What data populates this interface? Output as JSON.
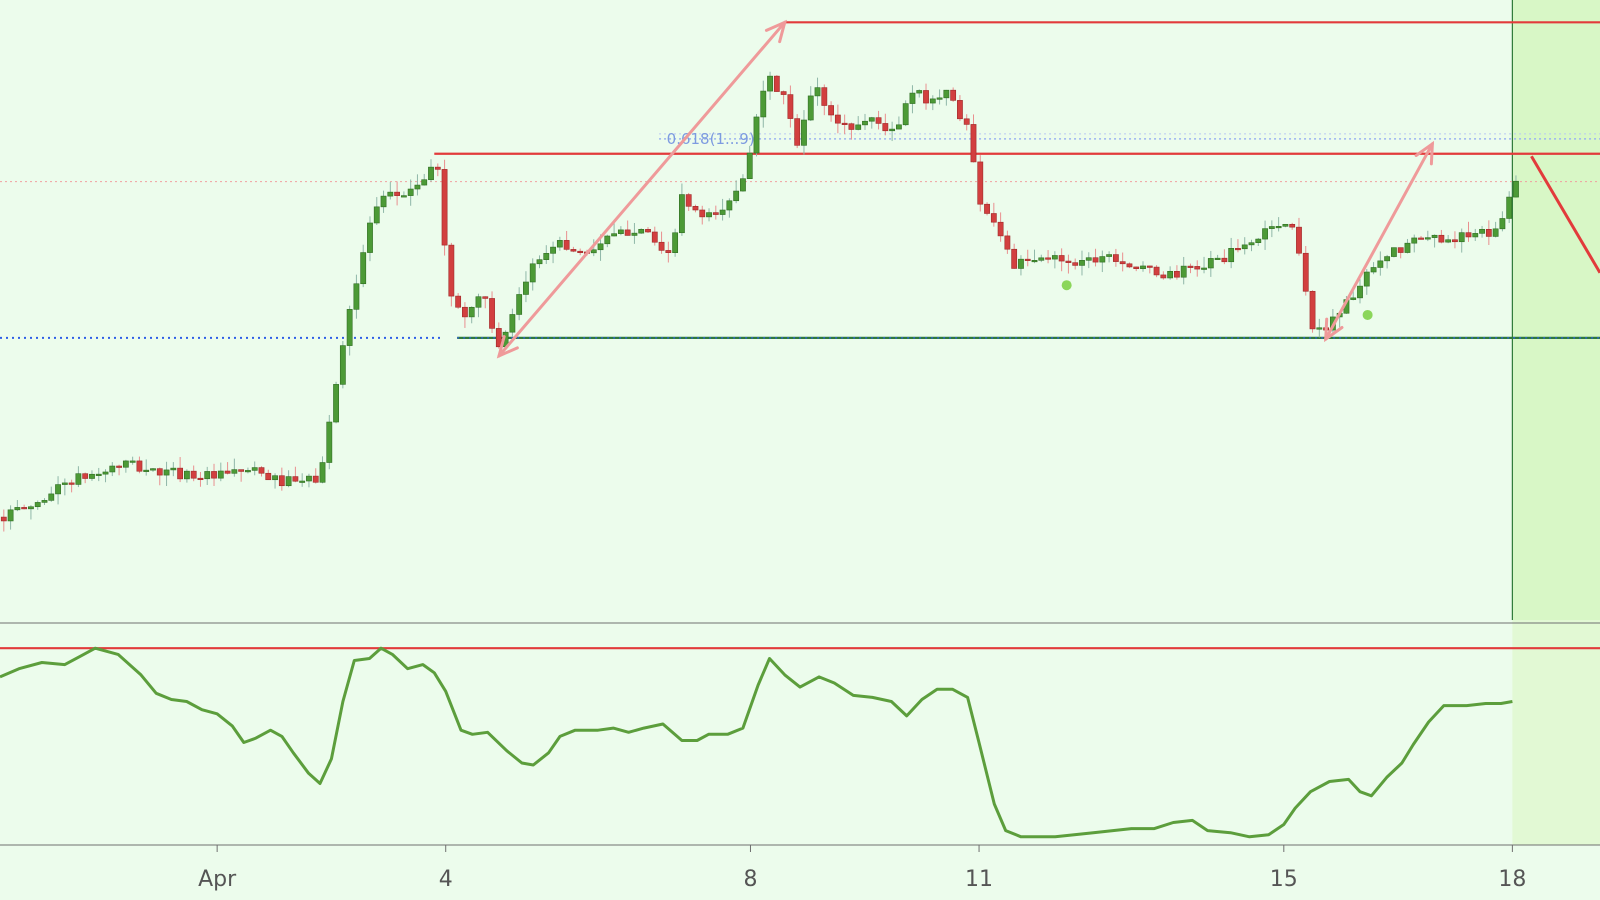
{
  "chart_data": {
    "type": "candlestick",
    "title": "",
    "xlabel": "",
    "ylabel": "",
    "x_tick_labels": [
      "Apr",
      "4",
      "8",
      "11",
      "15",
      "18"
    ],
    "x_tick_days": [
      1,
      4,
      8,
      11,
      15,
      18
    ],
    "x_range_days": [
      -1.85,
      19.15
    ],
    "price_range": [
      0,
      100
    ],
    "fib_label": "0.618(1...9)",
    "fib_level": 77.6,
    "resistance_top": 96.4,
    "resistance_mid": 75.2,
    "support_level": 45.5,
    "current_price": 70.7,
    "grid": false,
    "forecast_zone_start_day": 18,
    "indicator": {
      "range": [
        0,
        100
      ],
      "overbought_level": 96,
      "closes_series": [
        [
          -1.85,
          82
        ],
        [
          -1.6,
          86
        ],
        [
          -1.3,
          89
        ],
        [
          -1.0,
          88
        ],
        [
          -0.8,
          92
        ],
        [
          -0.6,
          96
        ],
        [
          -0.3,
          93
        ],
        [
          0.0,
          83
        ],
        [
          0.2,
          74
        ],
        [
          0.4,
          71
        ],
        [
          0.6,
          70
        ],
        [
          0.8,
          66
        ],
        [
          1.0,
          64
        ],
        [
          1.2,
          58
        ],
        [
          1.35,
          50
        ],
        [
          1.5,
          52
        ],
        [
          1.7,
          56
        ],
        [
          1.85,
          53
        ],
        [
          2.0,
          45
        ],
        [
          2.2,
          35
        ],
        [
          2.35,
          30
        ],
        [
          2.5,
          42
        ],
        [
          2.65,
          70
        ],
        [
          2.8,
          90
        ],
        [
          3.0,
          91
        ],
        [
          3.15,
          96
        ],
        [
          3.3,
          93
        ],
        [
          3.5,
          86
        ],
        [
          3.7,
          88
        ],
        [
          3.85,
          84
        ],
        [
          4.0,
          75
        ],
        [
          4.2,
          56
        ],
        [
          4.35,
          54
        ],
        [
          4.55,
          55
        ],
        [
          4.8,
          46
        ],
        [
          5.0,
          40
        ],
        [
          5.15,
          39
        ],
        [
          5.35,
          45
        ],
        [
          5.5,
          53
        ],
        [
          5.7,
          56
        ],
        [
          6.0,
          56
        ],
        [
          6.2,
          57
        ],
        [
          6.4,
          55
        ],
        [
          6.6,
          57
        ],
        [
          6.85,
          59
        ],
        [
          7.1,
          51
        ],
        [
          7.3,
          51
        ],
        [
          7.45,
          54
        ],
        [
          7.7,
          54
        ],
        [
          7.9,
          57
        ],
        [
          8.1,
          78
        ],
        [
          8.25,
          91
        ],
        [
          8.45,
          83
        ],
        [
          8.65,
          77
        ],
        [
          8.9,
          82
        ],
        [
          9.1,
          79
        ],
        [
          9.35,
          73
        ],
        [
          9.6,
          72
        ],
        [
          9.85,
          70
        ],
        [
          10.05,
          63
        ],
        [
          10.25,
          71
        ],
        [
          10.45,
          76
        ],
        [
          10.65,
          76
        ],
        [
          10.85,
          72
        ],
        [
          11.0,
          50
        ],
        [
          11.2,
          20
        ],
        [
          11.35,
          7
        ],
        [
          11.55,
          4
        ],
        [
          12.0,
          4
        ],
        [
          12.5,
          6
        ],
        [
          13.0,
          8
        ],
        [
          13.3,
          8
        ],
        [
          13.55,
          11
        ],
        [
          13.8,
          12
        ],
        [
          14.0,
          7
        ],
        [
          14.3,
          6
        ],
        [
          14.55,
          4
        ],
        [
          14.8,
          5
        ],
        [
          15.0,
          10
        ],
        [
          15.15,
          18
        ],
        [
          15.35,
          26
        ],
        [
          15.6,
          31
        ],
        [
          15.85,
          32
        ],
        [
          16.0,
          26
        ],
        [
          16.15,
          24
        ],
        [
          16.35,
          33
        ],
        [
          16.55,
          40
        ],
        [
          16.7,
          49
        ],
        [
          16.9,
          60
        ],
        [
          17.1,
          68
        ],
        [
          17.4,
          68
        ],
        [
          17.65,
          69
        ],
        [
          17.85,
          69
        ],
        [
          18.0,
          70
        ]
      ]
    },
    "x_keypoints": [
      -1.85,
      -1.4,
      -1.0,
      -0.6,
      -0.2,
      0.2,
      0.6,
      1.0,
      1.4,
      1.8,
      2.1,
      2.35,
      2.55,
      2.7,
      2.85,
      3.0,
      3.2,
      3.45,
      3.65,
      3.9,
      4.05,
      4.25,
      4.5,
      4.7,
      4.9,
      5.1,
      5.4,
      5.8,
      6.2,
      6.6,
      6.9,
      7.1,
      7.4,
      7.7,
      7.95,
      8.05,
      8.25,
      8.45,
      8.6,
      8.85,
      9.05,
      9.3,
      9.6,
      9.9,
      10.1,
      10.35,
      10.6,
      10.85,
      11.0,
      11.25,
      11.45,
      11.7,
      12.0,
      12.3,
      12.7,
      13.1,
      13.5,
      13.9,
      14.3,
      14.6,
      14.85,
      15.15,
      15.4,
      15.6,
      15.85,
      16.15,
      16.45,
      16.75,
      17.1,
      17.45,
      17.8,
      18.0,
      18.1
    ],
    "price_keypoints": [
      16.6,
      18.5,
      22.2,
      23.5,
      25.2,
      23.8,
      23.6,
      23.0,
      24.2,
      22.4,
      22.2,
      23.0,
      37.0,
      49.0,
      55.0,
      64.0,
      68.0,
      68.8,
      70.5,
      73.2,
      52.0,
      49.2,
      53.0,
      43.2,
      49.4,
      56.4,
      61.0,
      59.2,
      61.8,
      63.8,
      57.4,
      67.8,
      64.4,
      66.7,
      73.0,
      81.0,
      87.0,
      84.4,
      76.0,
      86.6,
      81.2,
      79.4,
      81.0,
      78.2,
      85.0,
      84.0,
      85.0,
      79.4,
      68.0,
      63.4,
      57.2,
      57.7,
      58.5,
      57.7,
      59.2,
      56.5,
      55.6,
      57.0,
      59.0,
      61.0,
      64.0,
      63.2,
      45.5,
      48.2,
      51.5,
      56.2,
      59.3,
      61.3,
      61.7,
      61.8,
      62.6,
      70.5,
      70.4
    ]
  }
}
